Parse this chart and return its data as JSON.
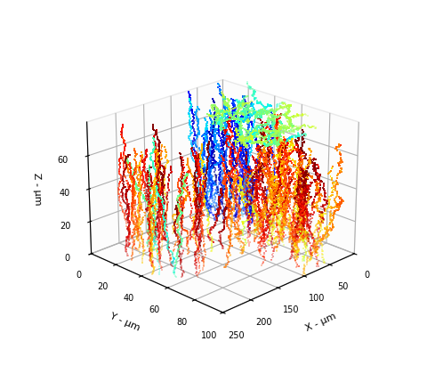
{
  "title": "",
  "xlabel": "X - μm",
  "ylabel": "Y - μm",
  "zlabel": "Z - μm",
  "xlim": [
    0,
    250
  ],
  "ylim": [
    100,
    0
  ],
  "zlim": [
    0,
    80
  ],
  "xticks": [
    0,
    50,
    100,
    150,
    200,
    250
  ],
  "yticks": [
    0,
    20,
    40,
    60,
    80,
    100
  ],
  "zticks": [
    0,
    20,
    40,
    60
  ],
  "colormap": "jet",
  "background_color": "#ffffff",
  "marker_size": 2.0,
  "seed": 7,
  "elev": 22,
  "azim": -135,
  "num_traj_cluster1": 60,
  "num_traj_cluster2": 35,
  "num_traj_cluster3": 30,
  "num_traj_cluster4": 50
}
